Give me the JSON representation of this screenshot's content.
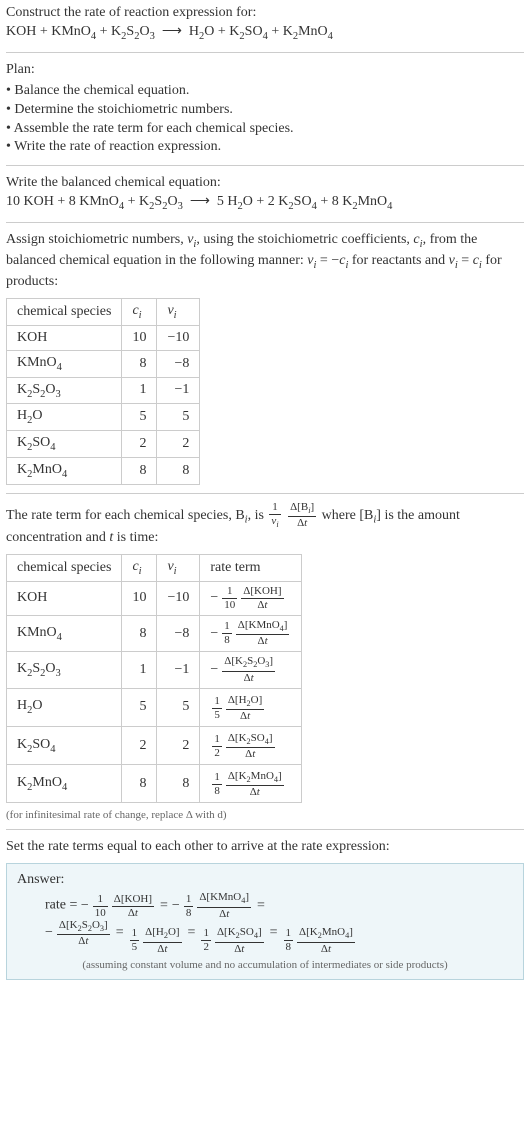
{
  "intro": {
    "title": "Construct the rate of reaction expression for:",
    "equation_lhs": [
      "KOH",
      "KMnO",
      "K",
      "S",
      "O"
    ],
    "equation": "KOH + KMnO4 + K2S2O3  ⟶  H2O + K2SO4 + K2MnO4"
  },
  "plan": {
    "heading": "Plan:",
    "items": [
      "Balance the chemical equation.",
      "Determine the stoichiometric numbers.",
      "Assemble the rate term for each chemical species.",
      "Write the rate of reaction expression."
    ]
  },
  "balanced": {
    "heading": "Write the balanced chemical equation:",
    "equation": "10 KOH + 8 KMnO4 + K2S2O3  ⟶  5 H2O + 2 K2SO4 + 8 K2MnO4"
  },
  "stoich_text": {
    "line1a": "Assign stoichiometric numbers, ",
    "nu": "ν",
    "sub_i": "i",
    "line1b": ", using the stoichiometric coefficients, ",
    "c": "c",
    "line1c": ", from the balanced chemical equation in the following manner: ",
    "rel1": "νᵢ = −cᵢ",
    "line1d": " for reactants and ",
    "rel2": "νᵢ = cᵢ",
    "line1e": " for products:"
  },
  "table1": {
    "headers": [
      "chemical species",
      "cᵢ",
      "νᵢ"
    ],
    "rows": [
      {
        "species": "KOH",
        "c": "10",
        "nu": "−10"
      },
      {
        "species": "KMnO4",
        "c": "8",
        "nu": "−8"
      },
      {
        "species": "K2S2O3",
        "c": "1",
        "nu": "−1"
      },
      {
        "species": "H2O",
        "c": "5",
        "nu": "5"
      },
      {
        "species": "K2SO4",
        "c": "2",
        "nu": "2"
      },
      {
        "species": "K2MnO4",
        "c": "8",
        "nu": "8"
      }
    ]
  },
  "rate_text": {
    "a": "The rate term for each chemical species, B",
    "b": ", is ",
    "inv_nu_num": "1",
    "inv_nu_den": "νᵢ",
    "dB_num": "Δ[Bᵢ]",
    "dB_den": "Δt",
    "c": " where [B",
    "d": "] is the amount concentration and ",
    "t": "t",
    "e": " is time:"
  },
  "table2": {
    "headers": [
      "chemical species",
      "cᵢ",
      "νᵢ",
      "rate term"
    ],
    "rows": [
      {
        "species": "KOH",
        "c": "10",
        "nu": "−10",
        "neg": true,
        "coef_num": "1",
        "coef_den": "10",
        "d_num": "Δ[KOH]",
        "d_den": "Δt"
      },
      {
        "species": "KMnO4",
        "c": "8",
        "nu": "−8",
        "neg": true,
        "coef_num": "1",
        "coef_den": "8",
        "d_num": "Δ[KMnO4]",
        "d_den": "Δt"
      },
      {
        "species": "K2S2O3",
        "c": "1",
        "nu": "−1",
        "neg": true,
        "coef_num": "",
        "coef_den": "",
        "d_num": "Δ[K2S2O3]",
        "d_den": "Δt"
      },
      {
        "species": "H2O",
        "c": "5",
        "nu": "5",
        "neg": false,
        "coef_num": "1",
        "coef_den": "5",
        "d_num": "Δ[H2O]",
        "d_den": "Δt"
      },
      {
        "species": "K2SO4",
        "c": "2",
        "nu": "2",
        "neg": false,
        "coef_num": "1",
        "coef_den": "2",
        "d_num": "Δ[K2SO4]",
        "d_den": "Δt"
      },
      {
        "species": "K2MnO4",
        "c": "8",
        "nu": "8",
        "neg": false,
        "coef_num": "1",
        "coef_den": "8",
        "d_num": "Δ[K2MnO4]",
        "d_den": "Δt"
      }
    ],
    "note": "(for infinitesimal rate of change, replace Δ with d)"
  },
  "set_equal": "Set the rate terms equal to each other to arrive at the rate expression:",
  "answer": {
    "heading": "Answer:",
    "rate_label": "rate = ",
    "terms": [
      {
        "neg": true,
        "coef_num": "1",
        "coef_den": "10",
        "d_num": "Δ[KOH]",
        "d_den": "Δt"
      },
      {
        "neg": true,
        "coef_num": "1",
        "coef_den": "8",
        "d_num": "Δ[KMnO4]",
        "d_den": "Δt"
      },
      {
        "neg": true,
        "coef_num": "",
        "coef_den": "",
        "d_num": "Δ[K2S2O3]",
        "d_den": "Δt"
      },
      {
        "neg": false,
        "coef_num": "1",
        "coef_den": "5",
        "d_num": "Δ[H2O]",
        "d_den": "Δt"
      },
      {
        "neg": false,
        "coef_num": "1",
        "coef_den": "2",
        "d_num": "Δ[K2SO4]",
        "d_den": "Δt"
      },
      {
        "neg": false,
        "coef_num": "1",
        "coef_den": "8",
        "d_num": "Δ[K2MnO4]",
        "d_den": "Δt"
      }
    ],
    "note": "(assuming constant volume and no accumulation of intermediates or side products)"
  }
}
